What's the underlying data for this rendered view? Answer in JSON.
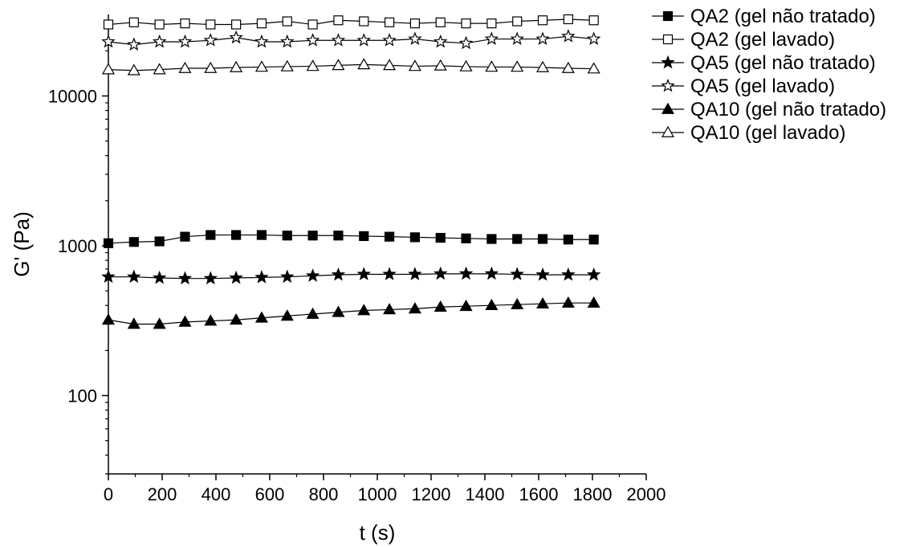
{
  "chart_data": {
    "type": "scatter",
    "xlabel": "t (s)",
    "ylabel": "G' (Pa)",
    "xlim": [
      0,
      2000
    ],
    "ylim": [
      30,
      35000
    ],
    "y_scale": "log",
    "x_ticks": [
      "0",
      "200",
      "400",
      "600",
      "800",
      "1000",
      "1200",
      "1400",
      "1600",
      "1800",
      "2000"
    ],
    "y_ticks": [
      "100",
      "1000",
      "10000"
    ],
    "legend_position": "outside-top-right",
    "x": [
      0,
      95,
      190,
      285,
      380,
      475,
      570,
      665,
      760,
      855,
      950,
      1045,
      1140,
      1235,
      1330,
      1425,
      1520,
      1615,
      1710,
      1805
    ],
    "series": [
      {
        "name": "QA2 (gel não tratado)",
        "marker": "filled-square",
        "values": [
          1040,
          1060,
          1070,
          1150,
          1180,
          1180,
          1180,
          1170,
          1170,
          1170,
          1160,
          1150,
          1140,
          1130,
          1120,
          1110,
          1110,
          1110,
          1100,
          1100
        ]
      },
      {
        "name": "QA2 (gel lavado)",
        "marker": "open-square",
        "values": [
          30000,
          31000,
          30000,
          30500,
          30000,
          30000,
          30500,
          31500,
          30000,
          32000,
          31500,
          31000,
          30500,
          31000,
          30500,
          30500,
          31500,
          32000,
          32500,
          32000
        ]
      },
      {
        "name": "QA5 (gel não tratado)",
        "marker": "filled-star",
        "values": [
          620,
          620,
          610,
          605,
          605,
          610,
          615,
          620,
          630,
          640,
          645,
          645,
          645,
          650,
          650,
          650,
          645,
          640,
          640,
          640
        ]
      },
      {
        "name": "QA5 (gel lavado)",
        "marker": "open-star",
        "values": [
          23000,
          22000,
          23000,
          23000,
          23500,
          24500,
          23000,
          23000,
          23500,
          23500,
          23500,
          23500,
          24000,
          23000,
          22500,
          24000,
          24000,
          24000,
          25000,
          24000
        ]
      },
      {
        "name": "QA10 (gel não tratado)",
        "marker": "filled-triangle",
        "values": [
          320,
          300,
          300,
          310,
          315,
          320,
          330,
          340,
          350,
          360,
          370,
          375,
          380,
          390,
          395,
          400,
          405,
          410,
          415,
          415
        ]
      },
      {
        "name": "QA10 (gel lavado)",
        "marker": "open-triangle",
        "values": [
          15000,
          14800,
          15000,
          15300,
          15300,
          15500,
          15600,
          15700,
          15800,
          16000,
          16200,
          16000,
          15800,
          15900,
          15700,
          15600,
          15600,
          15500,
          15300,
          15200
        ]
      }
    ]
  }
}
